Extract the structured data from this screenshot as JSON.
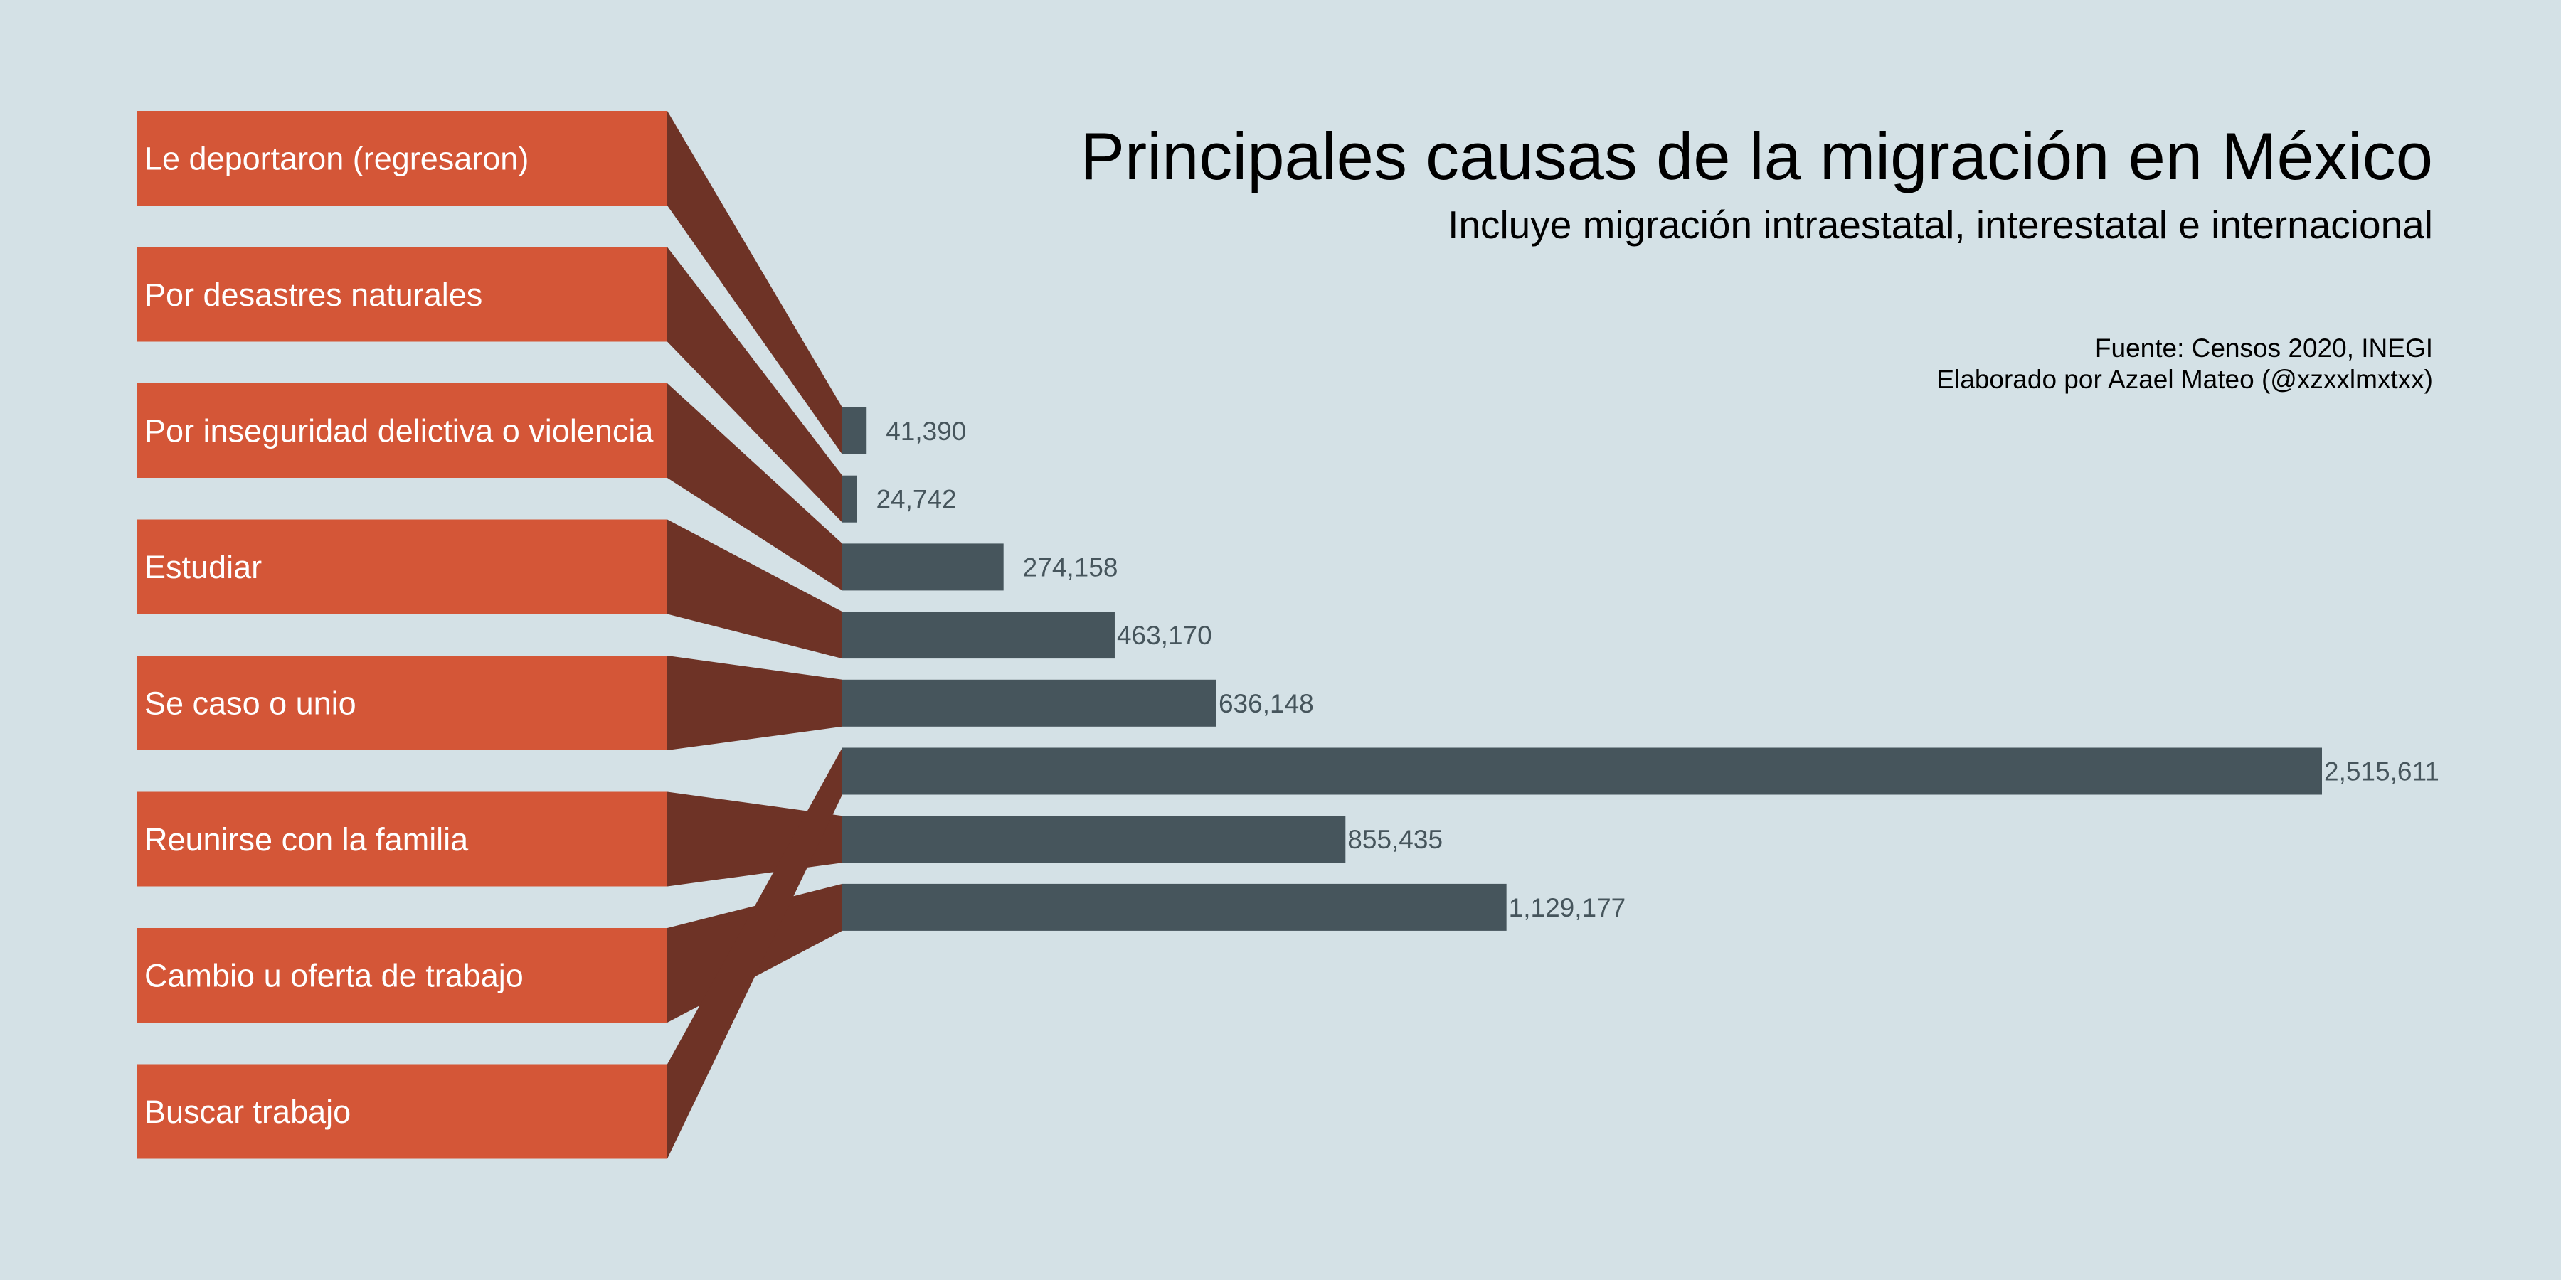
{
  "title": "Principales causas de la migración en México",
  "subtitle": "Incluye migración intraestatal, interestatal e internacional",
  "source": "Fuente: Censos 2020, INEGI",
  "author": "Elaborado por Azael Mateo (@xzxxlmxtxx)",
  "colors": {
    "background": "#d4e1e6",
    "label_box": "#d45637",
    "connector": "#6e3326",
    "bar": "#46555c",
    "value_text": "#46555c",
    "label_text": "#ffffff",
    "title_text": "#000000"
  },
  "chart_data": {
    "type": "bar",
    "orientation": "horizontal",
    "title": "Principales causas de la migración en México",
    "subtitle": "Incluye migración intraestatal, interestatal e internacional",
    "categories": [
      "Le deportaron (regresaron)",
      "Por desastres naturales",
      "Por inseguridad delictiva o violencia",
      "Estudiar",
      "Se caso o unio",
      "Reunirse con la familia",
      "Cambio u oferta de trabajo",
      "Buscar trabajo"
    ],
    "values": [
      41390,
      24742,
      274158,
      463170,
      636148,
      855435,
      1129177,
      2515611
    ],
    "value_labels": [
      "41,390",
      "24,742",
      "274,158",
      "463,170",
      "636,148",
      "855,435",
      "1,129,177",
      "2,515,611"
    ],
    "bar_order_top_to_bottom": [
      0,
      1,
      2,
      3,
      4,
      7,
      5,
      6
    ],
    "xlim": [
      0,
      2515611
    ],
    "grid": false,
    "legend": "none"
  }
}
